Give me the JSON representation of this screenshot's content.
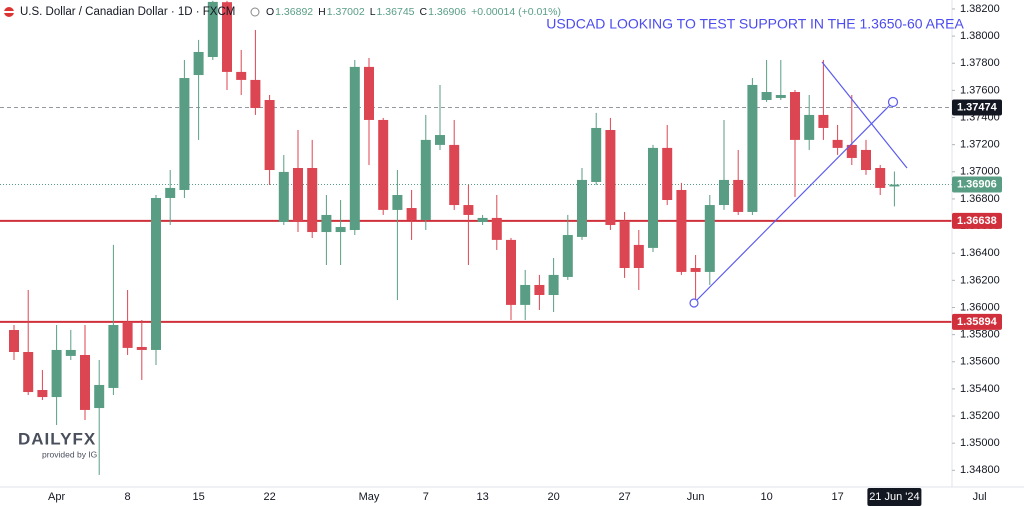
{
  "chart_data": {
    "type": "candlestick",
    "title": "U.S. Dollar / Canadian Dollar · 1D · FXCM",
    "header_items": [
      {
        "key": "O",
        "value": "1.36892"
      },
      {
        "key": "H",
        "value": "1.37002"
      },
      {
        "key": "L",
        "value": "1.36745"
      },
      {
        "key": "C",
        "value": "1.36906"
      }
    ],
    "change": "+0.00014 (+0.01%)",
    "annotation": "USDCAD LOOKING TO TEST SUPPORT IN THE 1.3650-60 AREA",
    "logo": {
      "brand": "DAILYFX",
      "tagline": "provided by IG"
    },
    "categories": [
      null,
      null,
      null,
      "Apr",
      null,
      null,
      null,
      null,
      "8",
      null,
      null,
      null,
      null,
      "15",
      null,
      null,
      null,
      null,
      "22",
      null,
      null,
      null,
      null,
      null,
      null,
      "May",
      null,
      null,
      null,
      "7",
      null,
      null,
      null,
      "13",
      null,
      null,
      null,
      null,
      "20",
      null,
      null,
      null,
      null,
      "27",
      null,
      null,
      null,
      null,
      "Jun",
      null,
      null,
      null,
      null,
      "10",
      null,
      null,
      null,
      null,
      "17",
      null,
      null,
      null,
      "21 Jun '24",
      null,
      null,
      null,
      null,
      null,
      "Jul"
    ],
    "series": [
      {
        "up_color": "#599e84",
        "down_color": "#dc4652",
        "open": [
          1.35834,
          1.35672,
          1.35392,
          1.3534,
          1.35643,
          1.3565,
          1.35259,
          1.35407,
          1.35893,
          1.35709,
          1.35687,
          1.36807,
          1.36866,
          1.37713,
          1.37846,
          1.3825,
          1.37736,
          1.37677,
          1.37529,
          1.3663,
          1.37028,
          1.37028,
          1.36556,
          1.36556,
          1.36571,
          1.37773,
          1.37382,
          1.36719,
          1.36733,
          1.36645,
          1.37198,
          1.37198,
          1.36755,
          1.3663,
          1.3666,
          1.36498,
          1.36019,
          1.36166,
          1.36092,
          1.36225,
          1.3652,
          1.36925,
          1.37308,
          1.3663,
          1.36461,
          1.36439,
          1.37176,
          1.36866,
          1.36291,
          1.36262,
          1.36755,
          1.3694,
          1.36704,
          1.37529,
          1.37544,
          1.37588,
          1.37235,
          1.37419,
          1.37235,
          1.37198,
          1.37161,
          1.37028,
          1.36892,
          null,
          null,
          null,
          null,
          null,
          null
        ],
        "high": [
          1.35871,
          1.36129,
          1.35539,
          1.35871,
          1.35834,
          1.35871,
          1.35613,
          1.36461,
          1.36129,
          1.35908,
          1.36829,
          1.37013,
          1.37824,
          1.37972,
          1.3826,
          1.3826,
          1.37898,
          1.38045,
          1.37566,
          1.37124,
          1.37308,
          1.37235,
          1.36829,
          1.36792,
          1.37824,
          1.37839,
          1.37397,
          1.37013,
          1.36866,
          1.37419,
          1.3764,
          1.37382,
          1.36903,
          1.36682,
          1.36829,
          1.36512,
          1.36277,
          1.3624,
          1.36365,
          1.36682,
          1.37028,
          1.37434,
          1.37397,
          1.36704,
          1.36571,
          1.37198,
          1.37345,
          1.36918,
          1.36387,
          1.36829,
          1.37382,
          1.37161,
          1.37691,
          1.37824,
          1.37824,
          1.37603,
          1.37566,
          1.37824,
          1.37345,
          1.37566,
          1.37235,
          1.3705,
          1.37002,
          null,
          null,
          null,
          null,
          null,
          null
        ],
        "low": [
          1.35613,
          1.35355,
          1.35318,
          1.35134,
          1.35613,
          1.35171,
          1.34766,
          1.35355,
          1.3565,
          1.35466,
          1.35576,
          1.36608,
          1.36807,
          1.37235,
          1.37824,
          1.37603,
          1.37566,
          1.37419,
          1.36903,
          1.36608,
          1.36556,
          1.36512,
          1.36313,
          1.36313,
          1.36534,
          1.3705,
          1.36682,
          1.36055,
          1.36498,
          1.36571,
          1.37161,
          1.36719,
          1.36313,
          1.36608,
          1.36424,
          1.35908,
          1.35908,
          1.35982,
          1.35967,
          1.36203,
          1.36498,
          1.36903,
          1.36571,
          1.36218,
          1.36129,
          1.36409,
          1.36755,
          1.3624,
          1.36055,
          1.36166,
          1.36719,
          1.36682,
          1.36682,
          1.37515,
          1.37529,
          1.36814,
          1.37161,
          1.37235,
          1.37124,
          1.3705,
          1.36977,
          1.36829,
          1.36745,
          null,
          null,
          null,
          null,
          null,
          null
        ],
        "close": [
          1.35672,
          1.35377,
          1.3534,
          1.35687,
          1.35687,
          1.35245,
          1.35429,
          1.35871,
          1.35702,
          1.35687,
          1.36807,
          1.36881,
          1.37691,
          1.37883,
          1.38252,
          1.37736,
          1.37677,
          1.3747,
          1.37013,
          1.36999,
          1.3663,
          1.36556,
          1.36682,
          1.36593,
          1.37773,
          1.37382,
          1.36719,
          1.36829,
          1.36645,
          1.37235,
          1.37271,
          1.36755,
          1.36682,
          1.3666,
          1.36498,
          1.36019,
          1.36166,
          1.36092,
          1.3624,
          1.36534,
          1.3694,
          1.37323,
          1.36608,
          1.36291,
          1.36291,
          1.37176,
          1.36792,
          1.36262,
          1.36262,
          1.36755,
          1.3694,
          1.36704,
          1.3764,
          1.37588,
          1.37566,
          1.37235,
          1.37419,
          1.37323,
          1.37176,
          1.37102,
          1.37013,
          1.36881,
          1.36906,
          null,
          null,
          null,
          null,
          null,
          null
        ]
      }
    ],
    "ylim": [
      1.34655,
      1.38266
    ],
    "yticks": [
      {
        "value": 1.348,
        "label": "1.34800"
      },
      {
        "value": 1.35,
        "label": "1.35000"
      },
      {
        "value": 1.352,
        "label": "1.35200"
      },
      {
        "value": 1.354,
        "label": "1.35400"
      },
      {
        "value": 1.356,
        "label": "1.35600"
      },
      {
        "value": 1.358,
        "label": "1.35800"
      },
      {
        "value": 1.36,
        "label": "1.36000"
      },
      {
        "value": 1.362,
        "label": "1.36200"
      },
      {
        "value": 1.364,
        "label": "1.36400"
      },
      {
        "value": 1.366,
        "label": "1.36600"
      },
      {
        "value": 1.368,
        "label": "1.36800"
      },
      {
        "value": 1.37,
        "label": "1.37000"
      },
      {
        "value": 1.372,
        "label": "1.37200"
      },
      {
        "value": 1.374,
        "label": "1.37400"
      },
      {
        "value": 1.376,
        "label": "1.37600"
      },
      {
        "value": 1.378,
        "label": "1.37800"
      },
      {
        "value": 1.38,
        "label": "1.38000"
      },
      {
        "value": 1.382,
        "label": "1.38200"
      }
    ],
    "grid": false,
    "reference_line": {
      "value": 1.37474,
      "color": "#131722"
    },
    "last_price": {
      "value": 1.36906,
      "color": "#599e84"
    },
    "levels": [
      {
        "value": 1.36638,
        "color": "#d0303c"
      },
      {
        "value": 1.35894,
        "color": "#d0303c"
      }
    ]
  }
}
